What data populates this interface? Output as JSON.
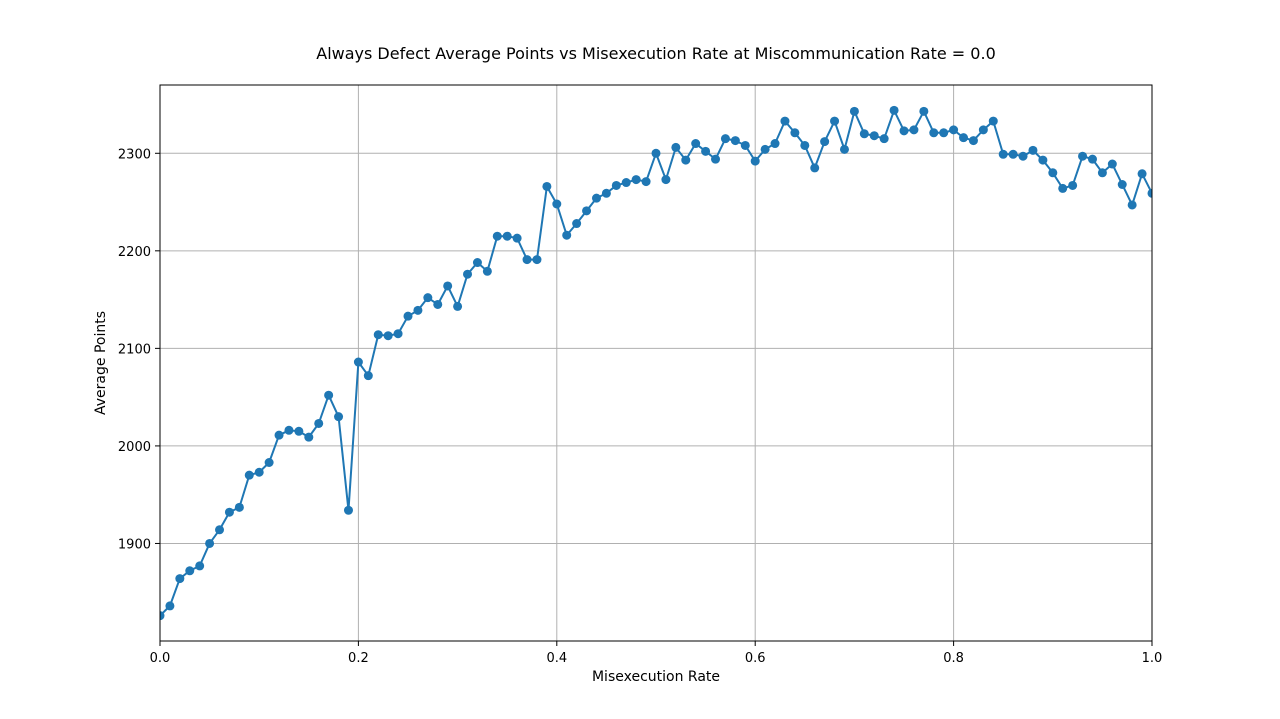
{
  "chart_data": {
    "type": "line",
    "title": "Always Defect Average Points vs Misexecution Rate at Miscommunication Rate = 0.0",
    "xlabel": "Misexecution Rate",
    "ylabel": "Average Points",
    "xlim": [
      0.0,
      1.0
    ],
    "ylim": [
      1800,
      2370
    ],
    "grid": true,
    "xticks": [
      0.0,
      0.2,
      0.4,
      0.6,
      0.8,
      1.0
    ],
    "xtick_labels": [
      "0.0",
      "0.2",
      "0.4",
      "0.6",
      "0.8",
      "1.0"
    ],
    "yticks": [
      1900,
      2000,
      2100,
      2200,
      2300
    ],
    "ytick_labels": [
      "1900",
      "2000",
      "2100",
      "2200",
      "2300"
    ],
    "color": "#1f77b4",
    "series": [
      {
        "x": [
          0.0,
          0.01,
          0.02,
          0.03,
          0.04,
          0.05,
          0.06,
          0.07,
          0.08,
          0.09,
          0.1,
          0.11,
          0.12,
          0.13,
          0.14,
          0.15,
          0.16,
          0.17,
          0.18,
          0.19,
          0.2,
          0.21,
          0.22,
          0.23,
          0.24,
          0.25,
          0.26,
          0.27,
          0.28,
          0.29,
          0.3,
          0.31,
          0.32,
          0.33,
          0.34,
          0.35,
          0.36,
          0.37,
          0.38,
          0.39,
          0.4,
          0.41,
          0.42,
          0.43,
          0.44,
          0.45,
          0.46,
          0.47,
          0.48,
          0.49,
          0.5,
          0.51,
          0.52,
          0.53,
          0.54,
          0.55,
          0.56,
          0.57,
          0.58,
          0.59,
          0.6,
          0.61,
          0.62,
          0.63,
          0.64,
          0.65,
          0.66,
          0.67,
          0.68,
          0.69,
          0.7,
          0.71,
          0.72,
          0.73,
          0.74,
          0.75,
          0.76,
          0.77,
          0.78,
          0.79,
          0.8,
          0.81,
          0.82,
          0.83,
          0.84,
          0.85,
          0.86,
          0.87,
          0.88,
          0.89,
          0.9,
          0.91,
          0.92,
          0.93,
          0.94,
          0.95,
          0.96,
          0.97,
          0.98,
          0.99,
          1.0
        ],
        "values": [
          1826,
          1836,
          1864,
          1872,
          1877,
          1900,
          1914,
          1932,
          1937,
          1970,
          1973,
          1983,
          2011,
          2016,
          2015,
          2009,
          2023,
          2052,
          2030,
          1934,
          2086,
          2072,
          2114,
          2113,
          2115,
          2133,
          2139,
          2152,
          2145,
          2164,
          2143,
          2176,
          2188,
          2179,
          2215,
          2215,
          2213,
          2191,
          2191,
          2266,
          2248,
          2216,
          2228,
          2241,
          2254,
          2259,
          2267,
          2270,
          2273,
          2271,
          2300,
          2273,
          2306,
          2293,
          2310,
          2302,
          2294,
          2315,
          2313,
          2308,
          2292,
          2304,
          2310,
          2333,
          2321,
          2308,
          2285,
          2312,
          2333,
          2304,
          2343,
          2320,
          2318,
          2315,
          2344,
          2323,
          2324,
          2343,
          2321,
          2321,
          2324,
          2316,
          2313,
          2324,
          2333,
          2299,
          2299,
          2297,
          2303,
          2293,
          2280,
          2264,
          2267,
          2297,
          2294,
          2280,
          2289,
          2268,
          2247,
          2279,
          2259
        ]
      }
    ]
  }
}
